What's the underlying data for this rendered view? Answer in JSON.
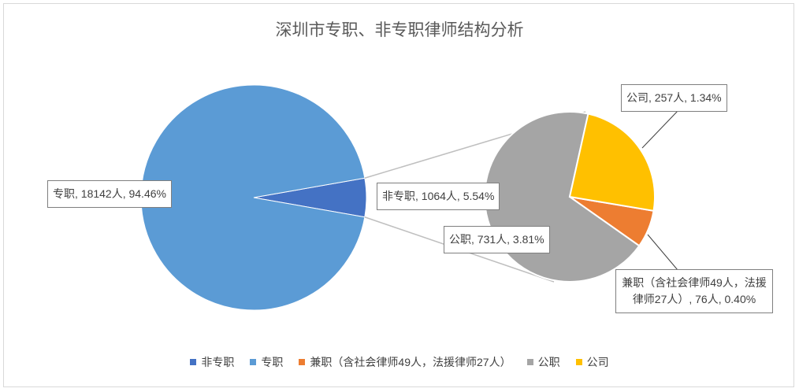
{
  "chart_data": {
    "type": "pie-of-pie",
    "title": "深圳市专职、非专职律师结构分析",
    "categories": [
      "非专职",
      "专职"
    ],
    "values": [
      1064,
      18142
    ],
    "colors": [
      "#4472c4",
      "#5b9bd5"
    ],
    "value_labels": [
      "非专职, 1064人, 5.54%",
      "专职, 18142人, 94.46%"
    ],
    "detail": {
      "categories": [
        "兼职（含社会律师49人，法援律师27人）",
        "公职",
        "公司"
      ],
      "values": [
        76,
        731,
        257
      ],
      "colors": [
        "#ed7d31",
        "#a5a5a5",
        "#ffc000"
      ],
      "value_labels": [
        "兼职（含社会律师49人，法援律师27人）, 76人, 0.40%",
        "公职, 731人, 3.81%",
        "公司, 257人, 1.34%"
      ]
    },
    "legend": "bottom"
  }
}
